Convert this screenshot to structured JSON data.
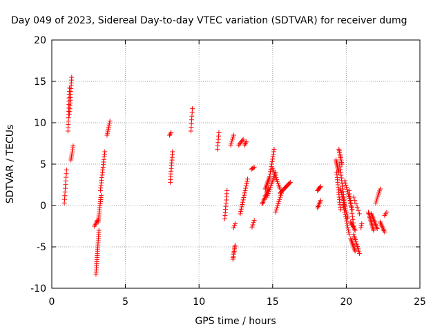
{
  "chart_data": {
    "type": "scatter",
    "title": "Day 049 of 2023, Sidereal Day-to-day VTEC variation (SDTVAR) for receiver dumg",
    "xlabel": "GPS time / hours",
    "ylabel": "SDTVAR / TECUs",
    "xlim": [
      0,
      25
    ],
    "ylim": [
      -10,
      20
    ],
    "xticks": [
      0,
      5,
      10,
      15,
      20,
      25
    ],
    "yticks": [
      -10,
      -5,
      0,
      5,
      10,
      15,
      20
    ],
    "grid": true,
    "marker": "+",
    "color": "#ff0000",
    "segments": [
      {
        "x0": 0.85,
        "x1": 1.0,
        "y0": 0.3,
        "y1": 4.3,
        "n": 10
      },
      {
        "x0": 1.1,
        "x1": 1.2,
        "y0": 9.0,
        "y1": 14.2,
        "n": 14
      },
      {
        "x0": 1.2,
        "x1": 1.35,
        "y0": 11.0,
        "y1": 15.5,
        "n": 14
      },
      {
        "x0": 1.3,
        "x1": 1.45,
        "y0": 5.5,
        "y1": 7.2,
        "n": 8
      },
      {
        "x0": 2.9,
        "x1": 3.1,
        "y0": -2.5,
        "y1": -1.8,
        "n": 5
      },
      {
        "x0": 3.0,
        "x1": 3.2,
        "y0": -8.3,
        "y1": -3.0,
        "n": 22
      },
      {
        "x0": 3.15,
        "x1": 3.35,
        "y0": -2.0,
        "y1": 1.2,
        "n": 14
      },
      {
        "x0": 3.3,
        "x1": 3.6,
        "y0": 1.8,
        "y1": 6.5,
        "n": 16
      },
      {
        "x0": 3.75,
        "x1": 3.95,
        "y0": 8.5,
        "y1": 10.2,
        "n": 8
      },
      {
        "x0": 8.05,
        "x1": 8.2,
        "y0": 2.8,
        "y1": 6.5,
        "n": 12
      },
      {
        "x0": 8.0,
        "x1": 8.1,
        "y0": 8.5,
        "y1": 8.8,
        "n": 3
      },
      {
        "x0": 9.45,
        "x1": 9.55,
        "y0": 9.0,
        "y1": 11.7,
        "n": 7
      },
      {
        "x0": 11.25,
        "x1": 11.35,
        "y0": 6.8,
        "y1": 8.8,
        "n": 6
      },
      {
        "x0": 11.75,
        "x1": 11.9,
        "y0": -1.6,
        "y1": 1.8,
        "n": 10
      },
      {
        "x0": 12.15,
        "x1": 12.35,
        "y0": 7.3,
        "y1": 8.5,
        "n": 6
      },
      {
        "x0": 12.3,
        "x1": 12.45,
        "y0": -6.5,
        "y1": -4.8,
        "n": 10
      },
      {
        "x0": 12.35,
        "x1": 12.45,
        "y0": -2.7,
        "y1": -2.2,
        "n": 3
      },
      {
        "x0": 12.7,
        "x1": 13.0,
        "y0": 7.3,
        "y1": 8.0,
        "n": 6
      },
      {
        "x0": 12.8,
        "x1": 13.3,
        "y0": -1.0,
        "y1": 3.2,
        "n": 16
      },
      {
        "x0": 13.1,
        "x1": 13.2,
        "y0": 7.3,
        "y1": 7.7,
        "n": 4
      },
      {
        "x0": 13.55,
        "x1": 13.75,
        "y0": 4.4,
        "y1": 4.6,
        "n": 4
      },
      {
        "x0": 13.6,
        "x1": 13.75,
        "y0": -2.6,
        "y1": -1.8,
        "n": 4
      },
      {
        "x0": 14.3,
        "x1": 14.7,
        "y0": 0.2,
        "y1": 2.0,
        "n": 12
      },
      {
        "x0": 14.5,
        "x1": 14.8,
        "y0": 2.0,
        "y1": 3.5,
        "n": 10
      },
      {
        "x0": 14.8,
        "x1": 15.1,
        "y0": 3.5,
        "y1": 6.8,
        "n": 12
      },
      {
        "x0": 14.6,
        "x1": 15.2,
        "y0": 1.0,
        "y1": 4.0,
        "n": 14
      },
      {
        "x0": 15.0,
        "x1": 15.5,
        "y0": 4.5,
        "y1": 2.0,
        "n": 12
      },
      {
        "x0": 15.2,
        "x1": 15.6,
        "y0": -0.8,
        "y1": 1.5,
        "n": 10
      },
      {
        "x0": 15.5,
        "x1": 16.2,
        "y0": 1.5,
        "y1": 2.8,
        "n": 14
      },
      {
        "x0": 18.05,
        "x1": 18.25,
        "y0": 1.8,
        "y1": 2.3,
        "n": 6
      },
      {
        "x0": 18.05,
        "x1": 18.25,
        "y0": -0.3,
        "y1": 0.6,
        "n": 6
      },
      {
        "x0": 19.3,
        "x1": 19.5,
        "y0": 5.5,
        "y1": 4.0,
        "n": 10
      },
      {
        "x0": 19.5,
        "x1": 19.7,
        "y0": 6.8,
        "y1": 5.0,
        "n": 10
      },
      {
        "x0": 19.35,
        "x1": 19.6,
        "y0": 4.0,
        "y1": -0.5,
        "n": 16
      },
      {
        "x0": 19.55,
        "x1": 19.9,
        "y0": 5.0,
        "y1": 0.0,
        "n": 16
      },
      {
        "x0": 19.6,
        "x1": 20.1,
        "y0": 2.0,
        "y1": -1.5,
        "n": 16
      },
      {
        "x0": 19.9,
        "x1": 20.4,
        "y0": 3.0,
        "y1": -0.5,
        "n": 14
      },
      {
        "x0": 19.8,
        "x1": 20.2,
        "y0": 0.0,
        "y1": -3.5,
        "n": 14
      },
      {
        "x0": 20.2,
        "x1": 20.5,
        "y0": 1.8,
        "y1": -2.5,
        "n": 12
      },
      {
        "x0": 20.3,
        "x1": 20.6,
        "y0": -2.0,
        "y1": -3.0,
        "n": 8
      },
      {
        "x0": 20.3,
        "x1": 20.6,
        "y0": -4.0,
        "y1": -5.5,
        "n": 10
      },
      {
        "x0": 20.5,
        "x1": 20.9,
        "y0": -3.5,
        "y1": -5.8,
        "n": 12
      },
      {
        "x0": 20.5,
        "x1": 20.9,
        "y0": 1.0,
        "y1": -1.0,
        "n": 6
      },
      {
        "x0": 21.0,
        "x1": 21.05,
        "y0": -2.7,
        "y1": -2.2,
        "n": 3
      },
      {
        "x0": 21.5,
        "x1": 21.85,
        "y0": -0.8,
        "y1": -3.0,
        "n": 14
      },
      {
        "x0": 21.7,
        "x1": 22.1,
        "y0": -1.0,
        "y1": -2.8,
        "n": 12
      },
      {
        "x0": 22.0,
        "x1": 22.3,
        "y0": 0.3,
        "y1": 2.0,
        "n": 8
      },
      {
        "x0": 22.3,
        "x1": 22.6,
        "y0": -2.0,
        "y1": -3.2,
        "n": 8
      },
      {
        "x0": 22.6,
        "x1": 22.75,
        "y0": -1.2,
        "y1": -0.8,
        "n": 3
      }
    ]
  }
}
